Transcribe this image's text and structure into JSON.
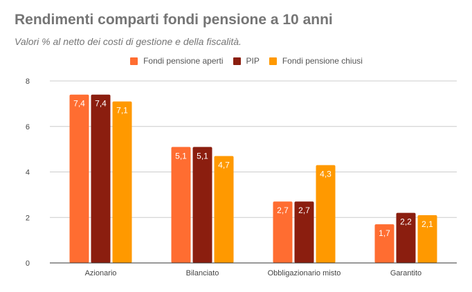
{
  "chart_data": {
    "type": "bar",
    "title": "Rendimenti comparti fondi pensione a 10 anni",
    "subtitle": "Valori % al netto dei costi di gestione e della fiscalità.",
    "categories": [
      "Azionario",
      "Bilanciato",
      "Obbligazionario misto",
      "Garantito"
    ],
    "series": [
      {
        "name": "Fondi pensione aperti",
        "color": "#ff6d31",
        "values": [
          7.4,
          5.1,
          2.7,
          1.7
        ],
        "labels": [
          "7,4",
          "5,1",
          "2,7",
          "1,7"
        ]
      },
      {
        "name": "PIP",
        "color": "#8b1e0f",
        "values": [
          7.4,
          5.1,
          2.7,
          2.2
        ],
        "labels": [
          "7,4",
          "5,1",
          "2,7",
          "2,2"
        ]
      },
      {
        "name": "Fondi pensione chiusi",
        "color": "#ff9900",
        "values": [
          7.1,
          4.7,
          4.3,
          2.1
        ],
        "labels": [
          "7,1",
          "4,7",
          "4,3",
          "2,1"
        ]
      }
    ],
    "ylim": [
      0,
      8
    ],
    "yticks": [
      "0",
      "2",
      "4",
      "6",
      "8"
    ],
    "grid": true,
    "legend": "top"
  }
}
